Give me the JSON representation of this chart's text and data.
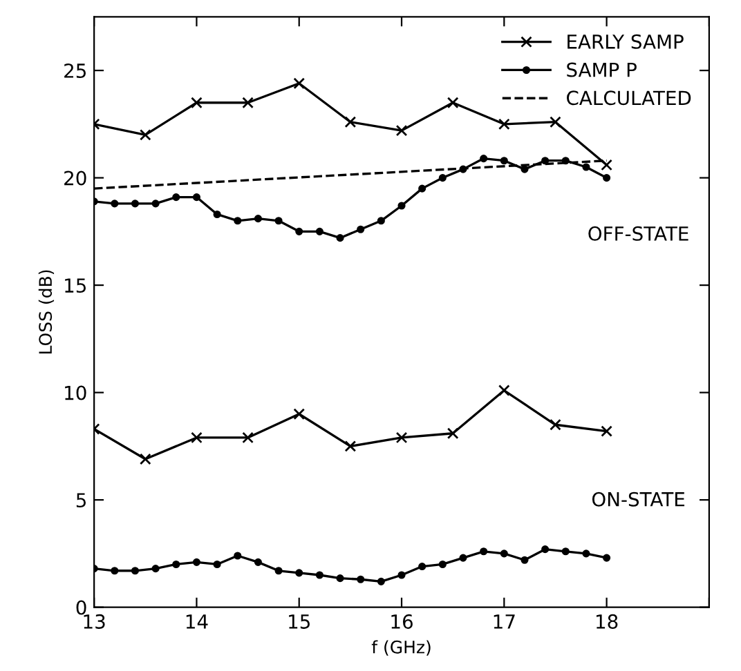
{
  "chart_data": {
    "type": "line",
    "xlabel": "f (GHz)",
    "ylabel": "LOSS (dB)",
    "xlim": [
      13,
      19
    ],
    "xticks": [
      13,
      14,
      15,
      16,
      17,
      18,
      {
        "value": 19,
        "label": null
      }
    ],
    "ylim": [
      0,
      27.5
    ],
    "yticks": [
      0,
      5,
      10,
      15,
      20,
      25
    ],
    "grid": false,
    "legend": "top right",
    "annotations": [
      "OFF-STATE",
      "ON-STATE"
    ],
    "series": [
      {
        "name": "EARLY SAMP",
        "color": "#000000",
        "marker": "cross",
        "line_style": "solid",
        "x": [
          13,
          13.5,
          14,
          14.5,
          15,
          15.5,
          16,
          16.5,
          17,
          17.5,
          18
        ],
        "values": [
          22.5,
          22.0,
          23.5,
          23.5,
          24.4,
          22.6,
          22.2,
          23.5,
          22.5,
          22.6,
          20.6
        ]
      },
      {
        "name": "SAMP P",
        "color": "#000000",
        "marker": "circle",
        "line_style": "solid",
        "x": [
          13,
          13.2,
          13.4,
          13.6,
          13.8,
          14,
          14.2,
          14.4,
          14.6,
          14.8,
          15,
          15.2,
          15.4,
          15.6,
          15.8,
          16,
          16.2,
          16.4,
          16.6,
          16.8,
          17,
          17.2,
          17.4,
          17.6,
          17.8,
          18
        ],
        "values": [
          18.9,
          18.8,
          18.8,
          18.8,
          19.1,
          19.1,
          18.3,
          18.0,
          18.1,
          18.0,
          17.5,
          17.5,
          17.2,
          17.6,
          18.0,
          18.7,
          19.5,
          20.0,
          20.4,
          20.9,
          20.8,
          20.4,
          20.8,
          20.8,
          20.5,
          20.0
        ]
      },
      {
        "name": "CALCULATED",
        "color": "#000000",
        "marker": "none",
        "line_style": "dashed",
        "x": [
          13,
          18
        ],
        "values": [
          19.5,
          20.8
        ]
      },
      {
        "color": "#000000",
        "marker": "cross",
        "line_style": "solid",
        "x": [
          13,
          13.5,
          14,
          14.5,
          15,
          15.5,
          16,
          16.5,
          17,
          17.5,
          18
        ],
        "values": [
          8.3,
          6.9,
          7.9,
          7.9,
          9.0,
          7.5,
          7.9,
          8.1,
          10.1,
          8.5,
          8.2
        ]
      },
      {
        "color": "#000000",
        "marker": "circle",
        "line_style": "solid",
        "x": [
          13,
          13.2,
          13.4,
          13.6,
          13.8,
          14,
          14.2,
          14.4,
          14.6,
          14.8,
          15,
          15.2,
          15.4,
          15.6,
          15.8,
          16,
          16.2,
          16.4,
          16.6,
          16.8,
          17,
          17.2,
          17.4,
          17.6,
          17.8,
          18
        ],
        "values": [
          1.8,
          1.7,
          1.7,
          1.8,
          2.0,
          2.1,
          2.0,
          2.4,
          2.1,
          1.7,
          1.6,
          1.5,
          1.35,
          1.3,
          1.2,
          1.5,
          1.9,
          2.0,
          2.3,
          2.6,
          2.5,
          2.2,
          2.7,
          2.6,
          2.5,
          2.3
        ]
      }
    ]
  }
}
